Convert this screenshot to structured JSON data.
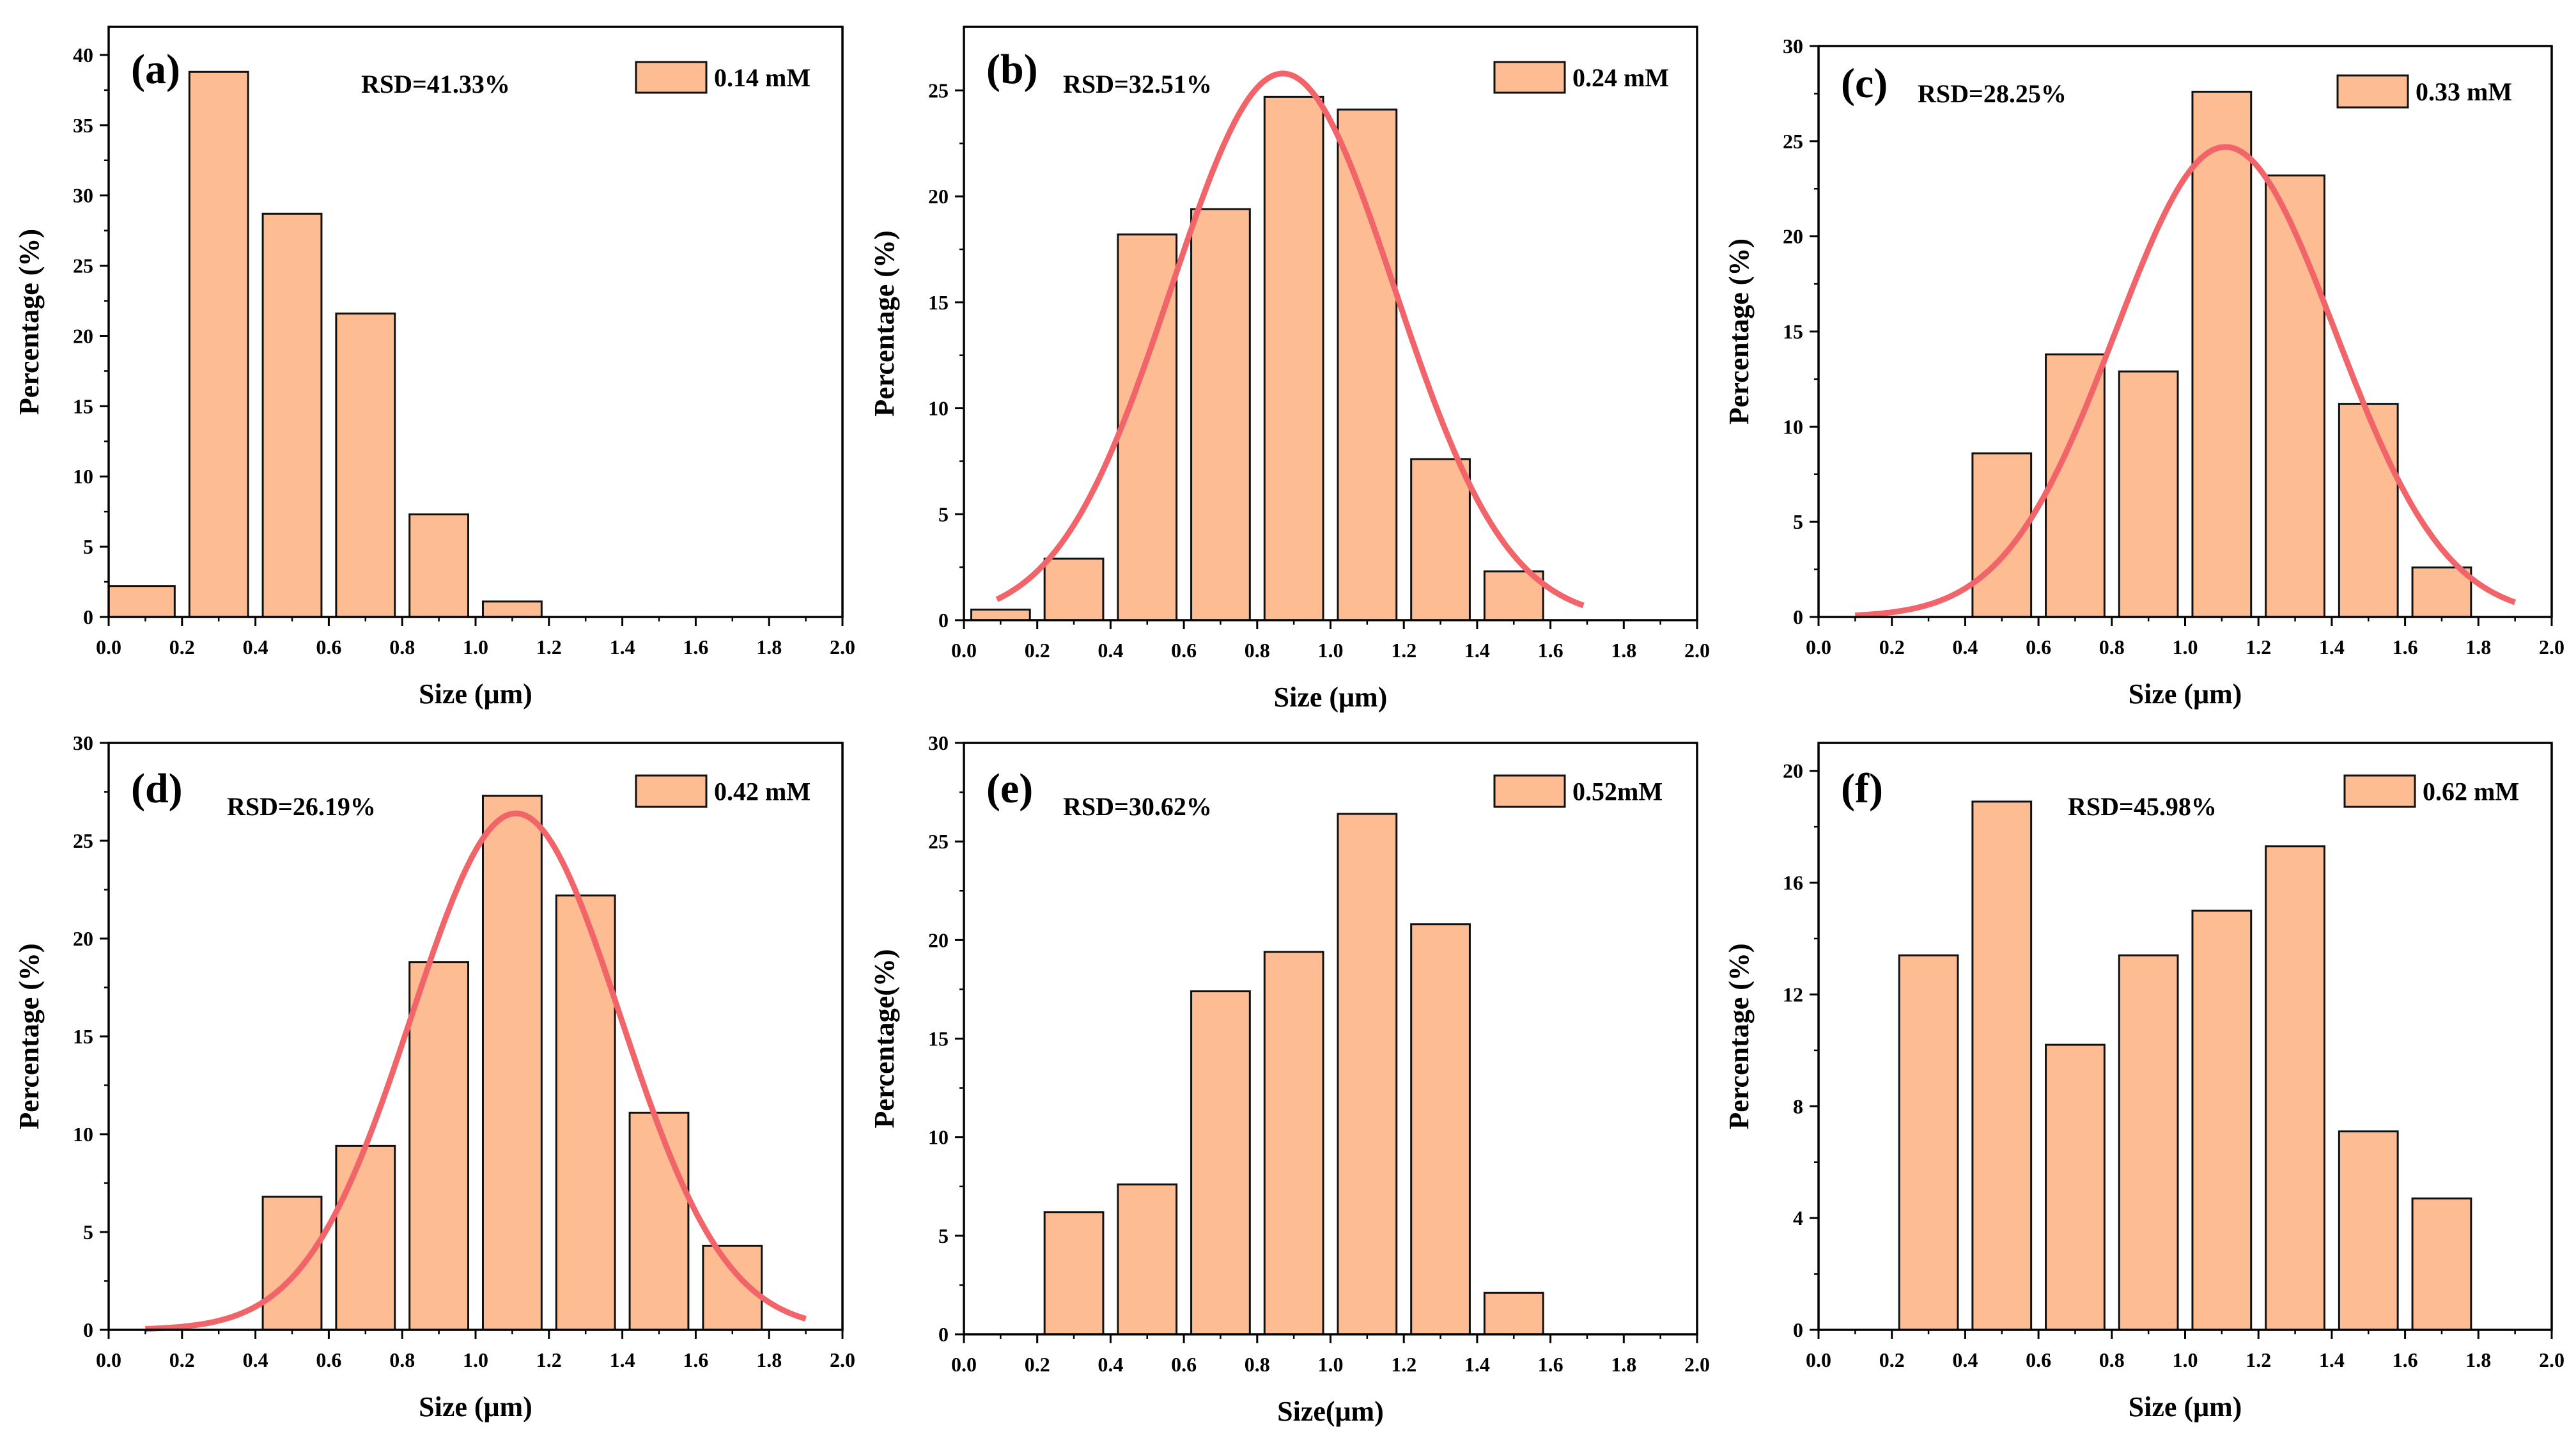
{
  "colors": {
    "bar_fill": "#FDBC92",
    "bar_stroke": "#111111",
    "fit_line": "#F0646A",
    "axis": "#000000"
  },
  "chart_data": [
    {
      "id": "a",
      "type": "bar",
      "panel_label": "(a)",
      "rsd_text": "RSD=41.33%",
      "legend": "0.14 mM",
      "xlabel": "Size (μm)",
      "ylabel": "Percentage (%)",
      "xlim": [
        0,
        2.0
      ],
      "ylim": [
        0,
        42
      ],
      "x_ticks": [
        0.0,
        0.2,
        0.4,
        0.6,
        0.8,
        1.0,
        1.2,
        1.4,
        1.6,
        1.8,
        2.0
      ],
      "x_tick_labels": [
        "0.0",
        "0.2",
        "0.4",
        "0.6",
        "0.8",
        "1.0",
        "1.2",
        "1.4",
        "1.6",
        "1.8",
        "2.0"
      ],
      "y_ticks": [
        0,
        5,
        10,
        15,
        20,
        25,
        30,
        35,
        40
      ],
      "y_tick_labels": [
        "0",
        "5",
        "10",
        "15",
        "20",
        "25",
        "30",
        "35",
        "40"
      ],
      "bins": [
        [
          0.0,
          0.18
        ],
        [
          0.22,
          0.38
        ],
        [
          0.42,
          0.58
        ],
        [
          0.62,
          0.78
        ],
        [
          0.82,
          0.98
        ],
        [
          1.02,
          1.18
        ]
      ],
      "values": [
        2.2,
        38.8,
        28.7,
        21.6,
        7.3,
        1.1
      ],
      "fit": null
    },
    {
      "id": "b",
      "type": "bar",
      "panel_label": "(b)",
      "rsd_text": "RSD=32.51%",
      "legend": "0.24 mM",
      "xlabel": "Size (μm)",
      "ylabel": "Percentage (%)",
      "xlim": [
        0,
        2.0
      ],
      "ylim": [
        0,
        28
      ],
      "x_ticks": [
        0.0,
        0.2,
        0.4,
        0.6,
        0.8,
        1.0,
        1.2,
        1.4,
        1.6,
        1.8,
        2.0
      ],
      "x_tick_labels": [
        "0.0",
        "0.2",
        "0.4",
        "0.6",
        "0.8",
        "1.0",
        "1.2",
        "1.4",
        "1.6",
        "1.8",
        "2.0"
      ],
      "y_ticks": [
        0,
        5,
        10,
        15,
        20,
        25
      ],
      "y_tick_labels": [
        "0",
        "5",
        "10",
        "15",
        "20",
        "25"
      ],
      "bins": [
        [
          0.02,
          0.18
        ],
        [
          0.22,
          0.38
        ],
        [
          0.42,
          0.58
        ],
        [
          0.62,
          0.78
        ],
        [
          0.82,
          0.98
        ],
        [
          1.02,
          1.18
        ],
        [
          1.22,
          1.38
        ],
        [
          1.42,
          1.58
        ]
      ],
      "values": [
        0.5,
        2.9,
        18.2,
        19.4,
        24.7,
        24.1,
        7.6,
        2.3
      ],
      "fit": {
        "amplitude": 25.8,
        "mean": 0.87,
        "sigma": 0.305,
        "x_start": 0.09,
        "x_end": 1.69
      }
    },
    {
      "id": "c",
      "type": "bar",
      "panel_label": "(c)",
      "rsd_text": "RSD=28.25%",
      "legend": "0.33 mM",
      "xlabel": "Size (μm)",
      "ylabel": "Percentage (%)",
      "xlim": [
        0,
        2.0
      ],
      "ylim": [
        0,
        30
      ],
      "x_ticks": [
        0.0,
        0.2,
        0.4,
        0.6,
        0.8,
        1.0,
        1.2,
        1.4,
        1.6,
        1.8,
        2.0
      ],
      "x_tick_labels": [
        "0.0",
        "0.2",
        "0.4",
        "0.6",
        "0.8",
        "1.0",
        "1.2",
        "1.4",
        "1.6",
        "1.8",
        "2.0"
      ],
      "y_ticks": [
        0,
        5,
        10,
        15,
        20,
        25,
        30
      ],
      "y_tick_labels": [
        "0",
        "5",
        "10",
        "15",
        "20",
        "25",
        "30"
      ],
      "bins": [
        [
          0.42,
          0.58
        ],
        [
          0.62,
          0.78
        ],
        [
          0.82,
          0.98
        ],
        [
          1.02,
          1.18
        ],
        [
          1.22,
          1.38
        ],
        [
          1.42,
          1.58
        ],
        [
          1.62,
          1.78
        ]
      ],
      "values": [
        8.6,
        13.8,
        12.9,
        27.6,
        23.2,
        11.2,
        2.6
      ],
      "fit": {
        "amplitude": 24.7,
        "mean": 1.11,
        "sigma": 0.3,
        "x_start": 0.1,
        "x_end": 1.9
      }
    },
    {
      "id": "d",
      "type": "bar",
      "panel_label": "(d)",
      "rsd_text": "RSD=26.19%",
      "legend": "0.42 mM",
      "xlabel": "Size (μm)",
      "ylabel": "Percentage (%)",
      "xlim": [
        0,
        2.0
      ],
      "ylim": [
        0,
        30
      ],
      "x_ticks": [
        0.0,
        0.2,
        0.4,
        0.6,
        0.8,
        1.0,
        1.2,
        1.4,
        1.6,
        1.8,
        2.0
      ],
      "x_tick_labels": [
        "0.0",
        "0.2",
        "0.4",
        "0.6",
        "0.8",
        "1.0",
        "1.2",
        "1.4",
        "1.6",
        "1.8",
        "2.0"
      ],
      "y_ticks": [
        0,
        5,
        10,
        15,
        20,
        25,
        30
      ],
      "y_tick_labels": [
        "0",
        "5",
        "10",
        "15",
        "20",
        "25",
        "30"
      ],
      "bins": [
        [
          0.42,
          0.58
        ],
        [
          0.62,
          0.78
        ],
        [
          0.82,
          0.98
        ],
        [
          1.02,
          1.18
        ],
        [
          1.22,
          1.38
        ],
        [
          1.42,
          1.58
        ],
        [
          1.62,
          1.78
        ]
      ],
      "values": [
        6.8,
        9.4,
        18.8,
        27.3,
        22.2,
        11.1,
        4.3
      ],
      "fit": {
        "amplitude": 26.4,
        "mean": 1.11,
        "sigma": 0.285,
        "x_start": 0.1,
        "x_end": 1.9
      }
    },
    {
      "id": "e",
      "type": "bar",
      "panel_label": "(e)",
      "rsd_text": "RSD=30.62%",
      "legend": "0.52mM",
      "xlabel": "Size(μm)",
      "ylabel": "Percentage(%)",
      "xlim": [
        0,
        2.0
      ],
      "ylim": [
        0,
        30
      ],
      "x_ticks": [
        0.0,
        0.2,
        0.4,
        0.6,
        0.8,
        1.0,
        1.2,
        1.4,
        1.6,
        1.8,
        2.0
      ],
      "x_tick_labels": [
        "0.0",
        "0.2",
        "0.4",
        "0.6",
        "0.8",
        "1.0",
        "1.2",
        "1.4",
        "1.6",
        "1.8",
        "2.0"
      ],
      "y_ticks": [
        0,
        5,
        10,
        15,
        20,
        25,
        30
      ],
      "y_tick_labels": [
        "0",
        "5",
        "10",
        "15",
        "20",
        "25",
        "30"
      ],
      "bins": [
        [
          0.22,
          0.38
        ],
        [
          0.42,
          0.58
        ],
        [
          0.62,
          0.78
        ],
        [
          0.82,
          0.98
        ],
        [
          1.02,
          1.18
        ],
        [
          1.22,
          1.38
        ],
        [
          1.42,
          1.58
        ]
      ],
      "values": [
        6.2,
        7.6,
        17.4,
        19.4,
        26.4,
        20.8,
        2.1
      ],
      "fit": null
    },
    {
      "id": "f",
      "type": "bar",
      "panel_label": "(f)",
      "rsd_text": "RSD=45.98%",
      "legend": "0.62 mM",
      "xlabel": "Size (μm)",
      "ylabel": "Percentage (%)",
      "xlim": [
        0,
        2.0
      ],
      "ylim": [
        0,
        21
      ],
      "x_ticks": [
        0.0,
        0.2,
        0.4,
        0.6,
        0.8,
        1.0,
        1.2,
        1.4,
        1.6,
        1.8,
        2.0
      ],
      "x_tick_labels": [
        "0.0",
        "0.2",
        "0.4",
        "0.6",
        "0.8",
        "1.0",
        "1.2",
        "1.4",
        "1.6",
        "1.8",
        "2.0"
      ],
      "y_ticks": [
        0,
        4,
        8,
        12,
        16,
        20
      ],
      "y_tick_labels": [
        "0",
        "4",
        "8",
        "12",
        "16",
        "20"
      ],
      "bins": [
        [
          0.22,
          0.38
        ],
        [
          0.42,
          0.58
        ],
        [
          0.62,
          0.78
        ],
        [
          0.82,
          0.98
        ],
        [
          1.02,
          1.18
        ],
        [
          1.22,
          1.38
        ],
        [
          1.42,
          1.58
        ],
        [
          1.62,
          1.78
        ]
      ],
      "values": [
        13.4,
        18.9,
        10.2,
        13.4,
        15.0,
        17.3,
        7.1,
        4.7
      ],
      "fit": null
    }
  ]
}
